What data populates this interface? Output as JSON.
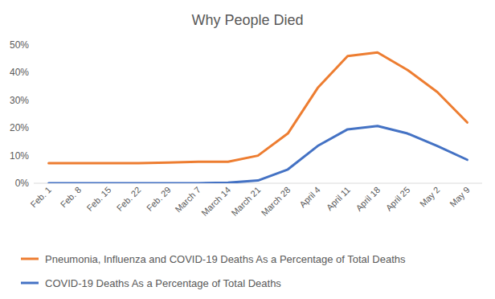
{
  "chart_data": {
    "type": "line",
    "title": "Why People Died",
    "categories": [
      "Feb. 1",
      "Feb. 8",
      "Feb. 15",
      "Feb. 22",
      "Feb. 29",
      "March 7",
      "March 14",
      "March 21",
      "March 28",
      "April 4",
      "April 11",
      "April 18",
      "April 25",
      "May 2",
      "May 9"
    ],
    "series": [
      {
        "name": "Pneumonia, Influenza and COVID-19 Deaths As a Percentage of Total Deaths",
        "color": "#ed7d31",
        "values": [
          7.3,
          7.3,
          7.3,
          7.3,
          7.5,
          7.8,
          7.8,
          10,
          18,
          34.5,
          46,
          47.3,
          41,
          33,
          22
        ]
      },
      {
        "name": "COVID-19 Deaths As a Percentage of Total Deaths",
        "color": "#4472c4",
        "values": [
          0,
          0,
          0,
          0,
          0,
          0,
          0.2,
          1,
          5,
          13.5,
          19.5,
          20.7,
          18,
          13.5,
          8.5
        ]
      }
    ],
    "ylim": [
      0,
      50
    ],
    "yticks": [
      {
        "value": 0,
        "label": "0%"
      },
      {
        "value": 10,
        "label": "10%"
      },
      {
        "value": 20,
        "label": "20%"
      },
      {
        "value": 30,
        "label": "30%"
      },
      {
        "value": 40,
        "label": "40%"
      },
      {
        "value": 50,
        "label": "50%"
      }
    ],
    "grid": false,
    "legend": "bottom"
  }
}
